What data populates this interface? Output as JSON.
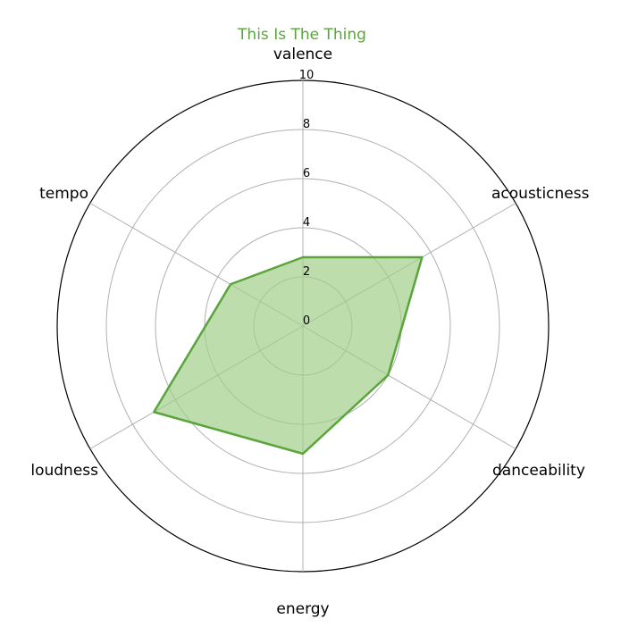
{
  "chart_data": {
    "type": "radar",
    "title": "This Is The Thing",
    "categories": [
      "valence",
      "acousticness",
      "danceability",
      "energy",
      "loudness",
      "tempo"
    ],
    "series": [
      {
        "values": [
          2.8,
          5.6,
          4.0,
          5.2,
          7.0,
          3.4
        ]
      }
    ],
    "rlim": [
      0,
      10
    ],
    "rticks": [
      "0",
      "2",
      "4",
      "6",
      "8",
      "10"
    ],
    "grid": true,
    "colors": {
      "title": "#5aa53a",
      "series_line": "#5aa53a",
      "series_fill": "#a3cf8a",
      "grid": "#b0b0b0",
      "outer": "#000000"
    }
  }
}
